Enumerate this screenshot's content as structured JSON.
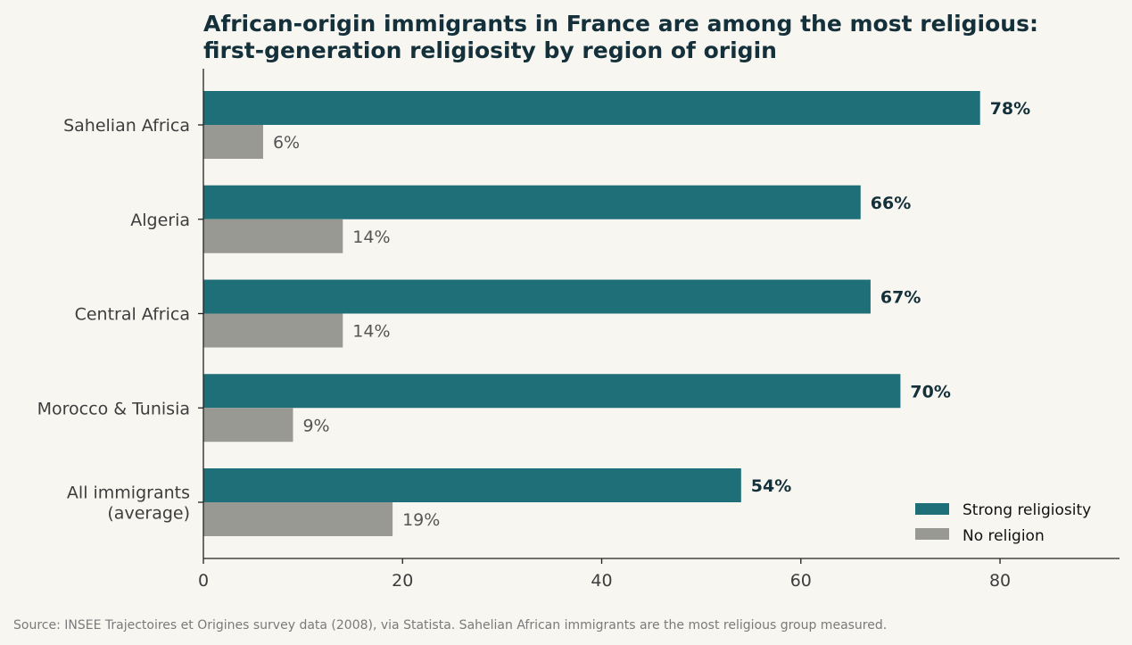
{
  "chart_data": {
    "type": "bar",
    "orientation": "horizontal",
    "title_lines": [
      "African-origin immigrants in France are among the most religious:",
      "first-generation religiosity by region of origin"
    ],
    "categories": [
      [
        "Sahelian Africa"
      ],
      [
        "Algeria"
      ],
      [
        "Central Africa"
      ],
      [
        "Morocco & Tunisia"
      ],
      [
        "All immigrants",
        "(average)"
      ]
    ],
    "series": [
      {
        "name": "Strong religiosity",
        "color": "#1f6f78",
        "values": [
          78,
          66,
          67,
          70,
          54
        ],
        "labels": [
          "78%",
          "66%",
          "67%",
          "70%",
          "54%"
        ]
      },
      {
        "name": "No religion",
        "color": "#999993",
        "values": [
          6,
          14,
          14,
          9,
          19
        ],
        "labels": [
          "6%",
          "14%",
          "14%",
          "9%",
          "19%"
        ]
      }
    ],
    "xlim": [
      0,
      92
    ],
    "xticks": [
      0,
      20,
      40,
      60,
      80
    ],
    "xtick_labels": [
      "0",
      "20",
      "40",
      "60",
      "80"
    ],
    "grid": false,
    "legend_position": "bottom-right",
    "source": "Source: INSEE Trajectoires et Origines survey data (2008), via Statista. Sahelian African immigrants are the most religious group measured."
  }
}
